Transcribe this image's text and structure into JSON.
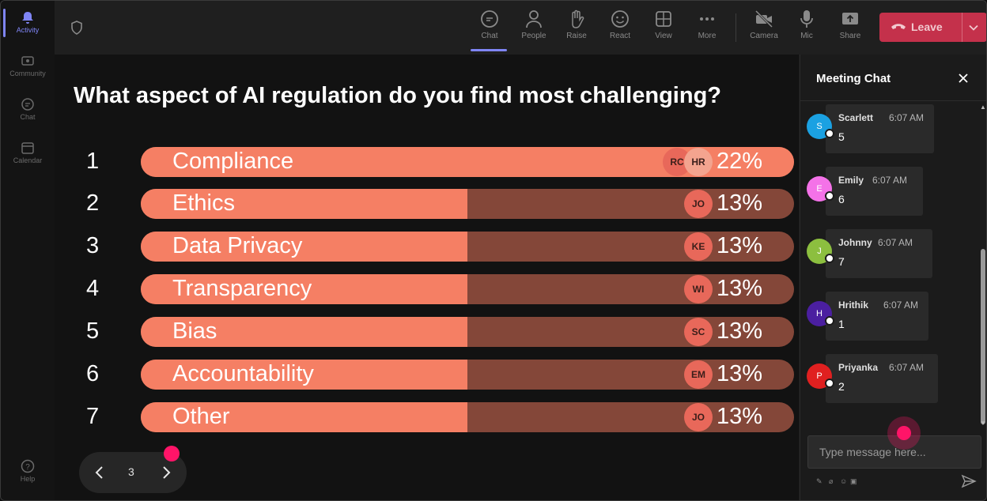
{
  "rail": {
    "items": [
      {
        "label": "Activity",
        "icon": "bell-icon"
      },
      {
        "label": "Community",
        "icon": "community-icon"
      },
      {
        "label": "Chat",
        "icon": "chat-icon"
      },
      {
        "label": "Calendar",
        "icon": "calendar-icon"
      },
      {
        "label": "Help",
        "icon": "help-icon"
      }
    ]
  },
  "toolbar": {
    "buttons": [
      {
        "label": "Chat",
        "icon": "chat-icon"
      },
      {
        "label": "People",
        "icon": "people-icon"
      },
      {
        "label": "Raise",
        "icon": "hand-icon"
      },
      {
        "label": "React",
        "icon": "smiley-icon"
      },
      {
        "label": "View",
        "icon": "grid-icon"
      },
      {
        "label": "More",
        "icon": "more-icon"
      },
      {
        "label": "Camera",
        "icon": "camera-off-icon"
      },
      {
        "label": "Mic",
        "icon": "mic-icon"
      },
      {
        "label": "Share",
        "icon": "share-icon"
      }
    ],
    "leave_label": "Leave",
    "leave_color": "#c4314b"
  },
  "poll": {
    "question": "What aspect of AI regulation do you find most challenging?",
    "options": [
      {
        "num": "1",
        "label": "Compliance",
        "percent": "22%",
        "share": 1.0,
        "avatars": [
          "RC",
          "HR"
        ]
      },
      {
        "num": "2",
        "label": "Ethics",
        "percent": "13%",
        "share": 0.5,
        "avatars": [
          "JO"
        ]
      },
      {
        "num": "3",
        "label": "Data Privacy",
        "percent": "13%",
        "share": 0.5,
        "avatars": [
          "KE"
        ]
      },
      {
        "num": "4",
        "label": "Transparency",
        "percent": "13%",
        "share": 0.5,
        "avatars": [
          "WI"
        ]
      },
      {
        "num": "5",
        "label": "Bias",
        "percent": "13%",
        "share": 0.5,
        "avatars": [
          "SC"
        ]
      },
      {
        "num": "6",
        "label": "Accountability",
        "percent": "13%",
        "share": 0.5,
        "avatars": [
          "EM"
        ]
      },
      {
        "num": "7",
        "label": "Other",
        "percent": "13%",
        "share": 0.5,
        "avatars": [
          "JO"
        ]
      }
    ],
    "bar_fill_color": "#f57f64",
    "bar_track_color": "#844739",
    "page": "3"
  },
  "chat": {
    "title": "Meeting Chat",
    "messages": [
      {
        "initial": "S",
        "name": "Scarlett",
        "time": "6:07 AM",
        "text": "5",
        "avatar_color": "#1ba1e2"
      },
      {
        "initial": "E",
        "name": "Emily",
        "time": "6:07 AM",
        "text": "6",
        "avatar_color": "#f472e8"
      },
      {
        "initial": "J",
        "name": "Johnny",
        "time": "6:07 AM",
        "text": "7",
        "avatar_color": "#8cbf3f"
      },
      {
        "initial": "H",
        "name": "Hrithik",
        "time": "6:07 AM",
        "text": "1",
        "avatar_color": "#4b1fa0"
      },
      {
        "initial": "P",
        "name": "Priyanka",
        "time": "6:07 AM",
        "text": "2",
        "avatar_color": "#e02020"
      }
    ],
    "input_placeholder": "Type message here..."
  }
}
